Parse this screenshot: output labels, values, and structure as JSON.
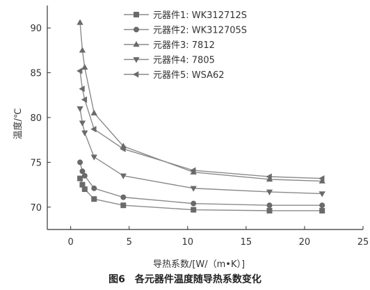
{
  "chart_data": {
    "type": "line",
    "title": "",
    "xlabel": "导热系数/[W/（m•K）]",
    "ylabel": "温度/℃",
    "caption": "图6　各元器件温度随导热系数变化",
    "xlim": [
      -2,
      25
    ],
    "ylim": [
      67.5,
      92.5
    ],
    "xticks": [
      0,
      5,
      10,
      15,
      20,
      25
    ],
    "yticks": [
      70,
      75,
      80,
      85,
      90
    ],
    "grid": false,
    "legend": "top-center",
    "colors": {
      "line": "#8a8a8a",
      "marker": "#6a6a6a",
      "axis": "#333333"
    },
    "series": [
      {
        "name": "元器件1: WK312712S",
        "marker": "square",
        "x": [
          0.8,
          1.0,
          1.2,
          2.0,
          4.5,
          10.5,
          17.0,
          21.5
        ],
        "y": [
          73.2,
          72.5,
          72.0,
          70.9,
          70.2,
          69.7,
          69.6,
          69.6
        ]
      },
      {
        "name": "元器件2: WK312705S",
        "marker": "circle",
        "x": [
          0.8,
          1.0,
          1.2,
          2.0,
          4.5,
          10.5,
          17.0,
          21.5
        ],
        "y": [
          75.0,
          74.0,
          73.5,
          72.1,
          71.1,
          70.4,
          70.2,
          70.2
        ]
      },
      {
        "name": "元器件3: 7812",
        "marker": "triangle-up",
        "x": [
          0.8,
          1.0,
          1.2,
          2.0,
          4.5,
          10.5,
          17.0,
          21.5
        ],
        "y": [
          90.6,
          87.5,
          85.6,
          80.5,
          76.8,
          73.9,
          73.1,
          72.9
        ]
      },
      {
        "name": "元器件4: 7805",
        "marker": "triangle-down",
        "x": [
          0.8,
          1.0,
          1.2,
          2.0,
          4.5,
          10.5,
          17.0,
          21.5
        ],
        "y": [
          81.0,
          79.4,
          78.3,
          75.6,
          73.5,
          72.1,
          71.7,
          71.5
        ]
      },
      {
        "name": "元器件5: WSA62",
        "marker": "triangle-left",
        "x": [
          0.8,
          1.0,
          1.2,
          2.0,
          4.5,
          10.5,
          17.0,
          21.5
        ],
        "y": [
          85.2,
          83.2,
          82.0,
          78.7,
          76.5,
          74.1,
          73.4,
          73.2
        ]
      }
    ]
  }
}
